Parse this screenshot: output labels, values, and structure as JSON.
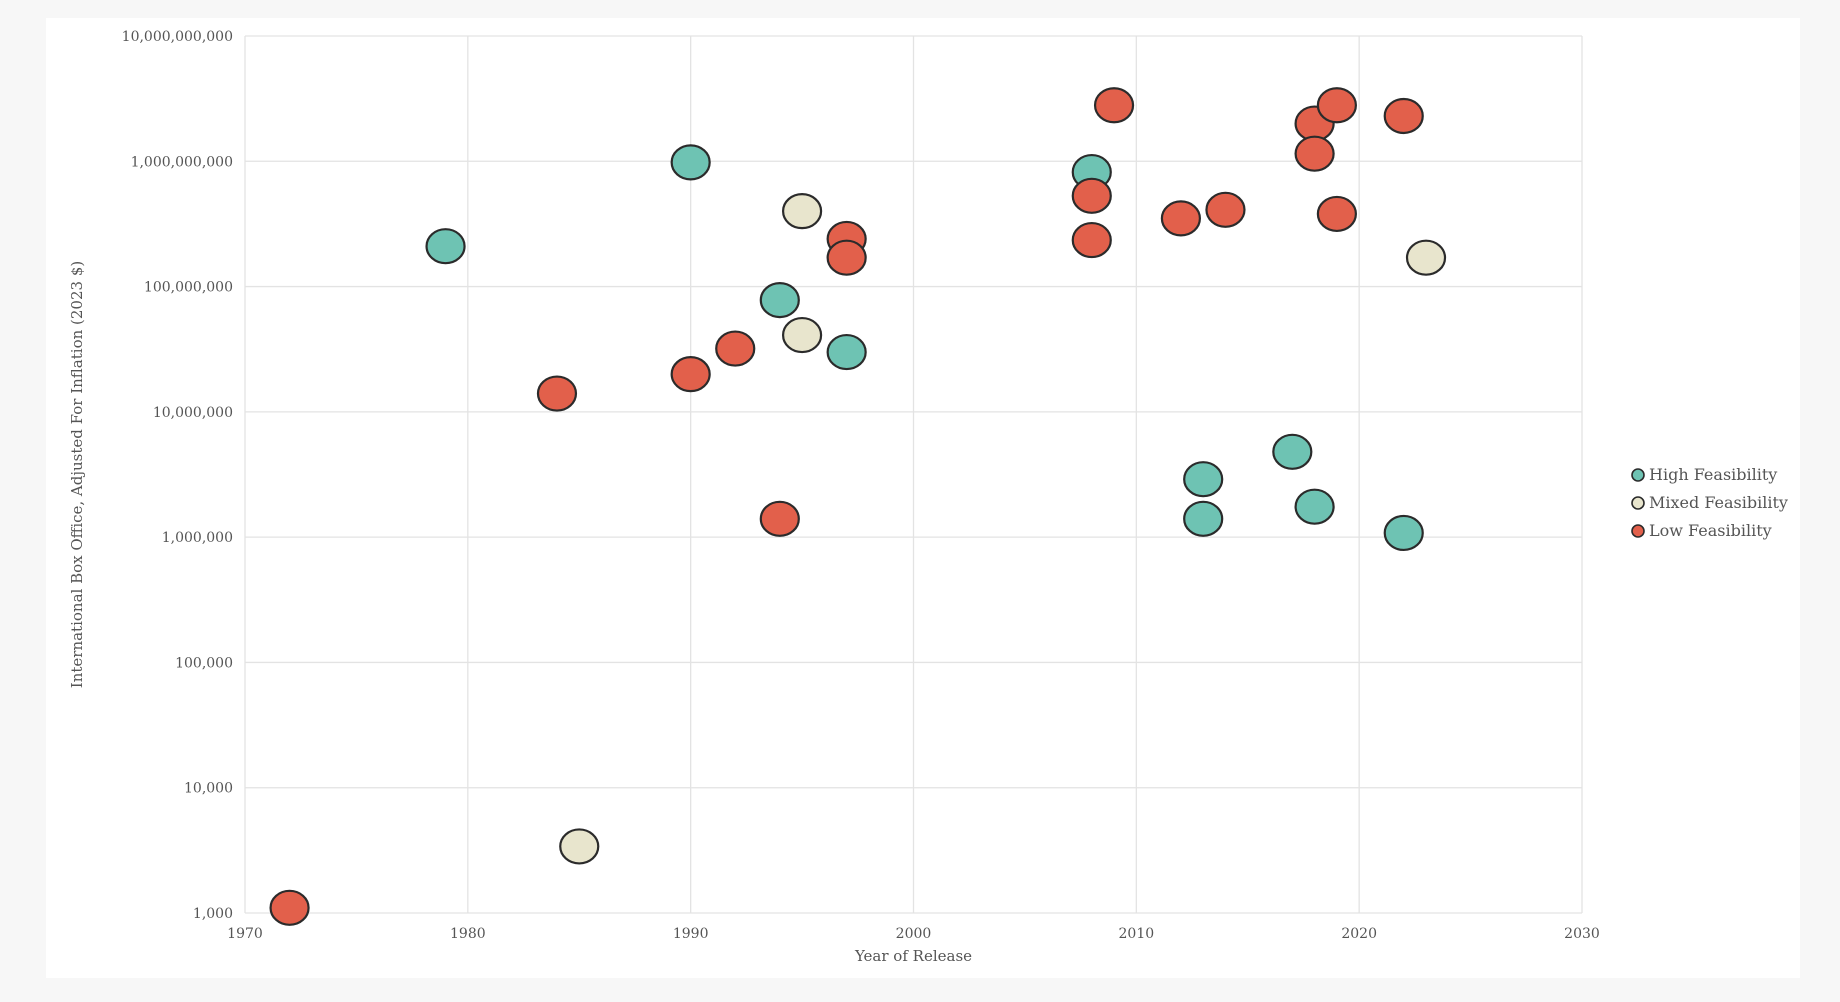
{
  "chart_data": {
    "type": "scatter",
    "title": "",
    "xlabel": "Year of Release",
    "ylabel": "International Box Office, Adjusted For Inflation (2023 $)",
    "xlim": [
      1970,
      2030
    ],
    "ylim": [
      1000,
      10000000000
    ],
    "yscale": "log",
    "grid": true,
    "legend_position": "right",
    "x_ticks": [
      1970,
      1980,
      1990,
      2000,
      2010,
      2020,
      2030
    ],
    "x_tick_labels": [
      "1970",
      "1980",
      "1990",
      "2000",
      "2010",
      "2020",
      "2030"
    ],
    "y_ticks": [
      1000,
      10000,
      100000,
      1000000,
      10000000,
      100000000,
      1000000000,
      10000000000
    ],
    "y_tick_labels": [
      "1,000",
      "10,000",
      "100,000",
      "1,000,000",
      "10,000,000",
      "100,000,000",
      "1,000,000,000",
      "10,000,000,000"
    ],
    "series": [
      {
        "name": "High Feasibility",
        "color": "#6ec3b3",
        "points": [
          {
            "x": 1979,
            "y": 210000000
          },
          {
            "x": 1990,
            "y": 980000000
          },
          {
            "x": 1994,
            "y": 78000000
          },
          {
            "x": 1997,
            "y": 30000000
          },
          {
            "x": 2008,
            "y": 820000000
          },
          {
            "x": 2013,
            "y": 2900000
          },
          {
            "x": 2013,
            "y": 1400000
          },
          {
            "x": 2017,
            "y": 4800000
          },
          {
            "x": 2018,
            "y": 1750000
          },
          {
            "x": 2022,
            "y": 1080000
          }
        ]
      },
      {
        "name": "Mixed Feasibility",
        "color": "#e8e5cd",
        "points": [
          {
            "x": 1985,
            "y": 3400
          },
          {
            "x": 1995,
            "y": 400000000
          },
          {
            "x": 1995,
            "y": 41000000
          },
          {
            "x": 2023,
            "y": 170000000
          }
        ]
      },
      {
        "name": "Low Feasibility",
        "color": "#e2604b",
        "points": [
          {
            "x": 1972,
            "y": 1100
          },
          {
            "x": 1984,
            "y": 14000000
          },
          {
            "x": 1990,
            "y": 20000000
          },
          {
            "x": 1992,
            "y": 32000000
          },
          {
            "x": 1994,
            "y": 1400000
          },
          {
            "x": 1997,
            "y": 240000000
          },
          {
            "x": 1997,
            "y": 170000000
          },
          {
            "x": 2008,
            "y": 530000000
          },
          {
            "x": 2008,
            "y": 235000000
          },
          {
            "x": 2009,
            "y": 2800000000
          },
          {
            "x": 2012,
            "y": 350000000
          },
          {
            "x": 2014,
            "y": 410000000
          },
          {
            "x": 2018,
            "y": 2000000000
          },
          {
            "x": 2018,
            "y": 1150000000
          },
          {
            "x": 2019,
            "y": 2800000000
          },
          {
            "x": 2019,
            "y": 380000000
          },
          {
            "x": 2022,
            "y": 2300000000
          }
        ]
      }
    ]
  }
}
